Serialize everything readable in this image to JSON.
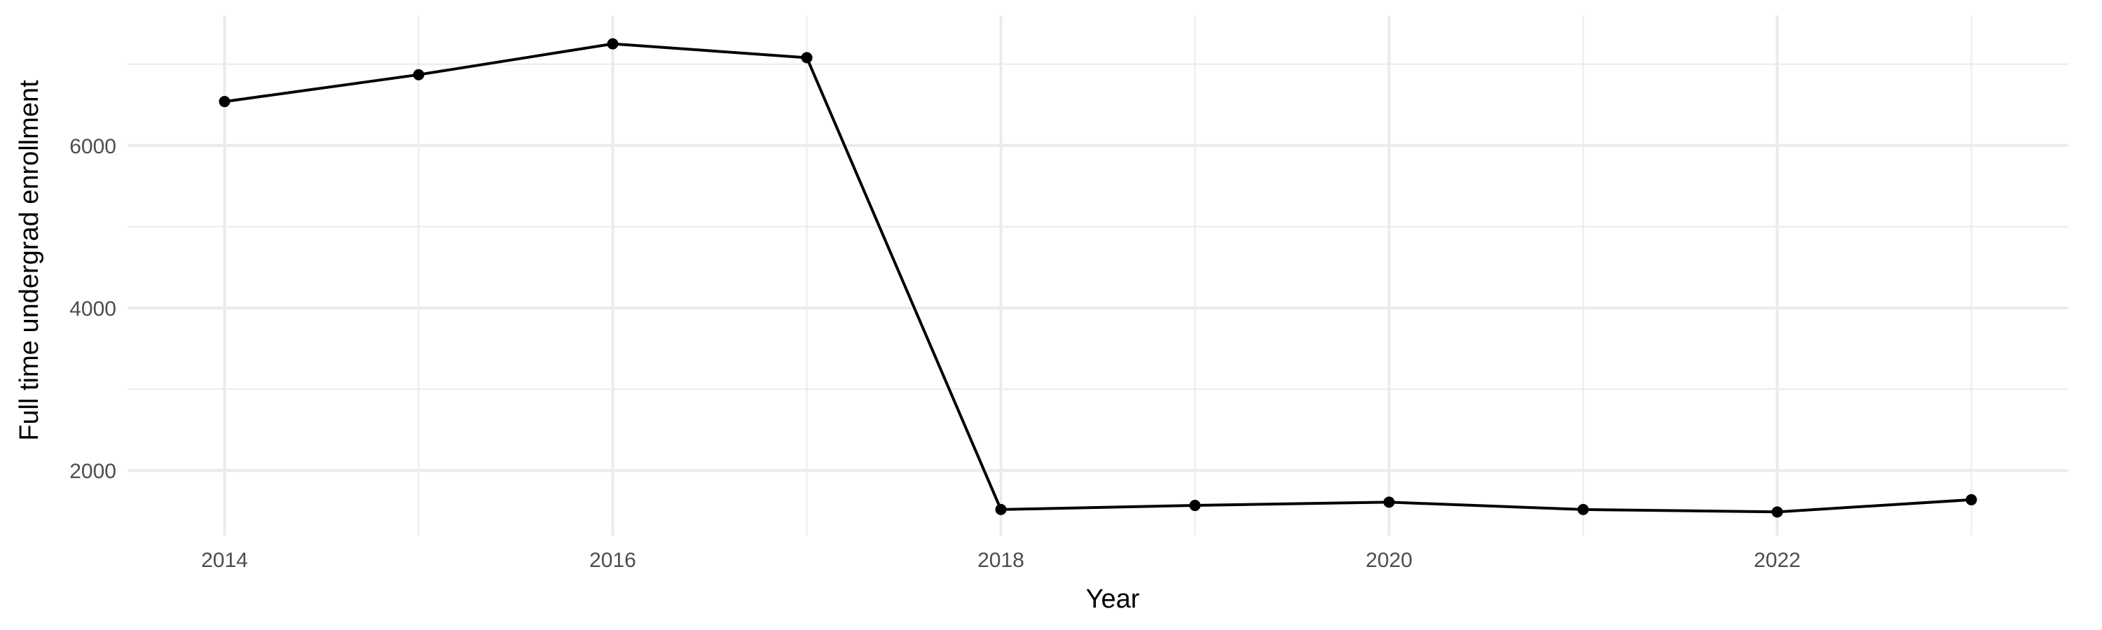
{
  "chart_data": {
    "type": "line",
    "title": "",
    "xlabel": "Year",
    "ylabel": "Full time undergrad enrollment",
    "x": [
      2014,
      2015,
      2016,
      2017,
      2018,
      2019,
      2020,
      2021,
      2022,
      2023
    ],
    "series": [
      {
        "values": [
          6540,
          6870,
          7250,
          7080,
          1520,
          1570,
          1610,
          1520,
          1490,
          1640
        ]
      }
    ],
    "xlim": [
      2013.5,
      2023.5
    ],
    "ylim": [
      1200,
      7600
    ],
    "x_ticks": [
      2014,
      2016,
      2018,
      2020,
      2022
    ],
    "x_tick_labels": [
      "2014",
      "2016",
      "2018",
      "2020",
      "2022"
    ],
    "y_ticks": [
      2000,
      4000,
      6000
    ],
    "y_tick_labels": [
      "2000",
      "4000",
      "6000"
    ],
    "grid": true,
    "legend": "none",
    "line_color": "#000000",
    "grid_color": "#ebebeb"
  }
}
